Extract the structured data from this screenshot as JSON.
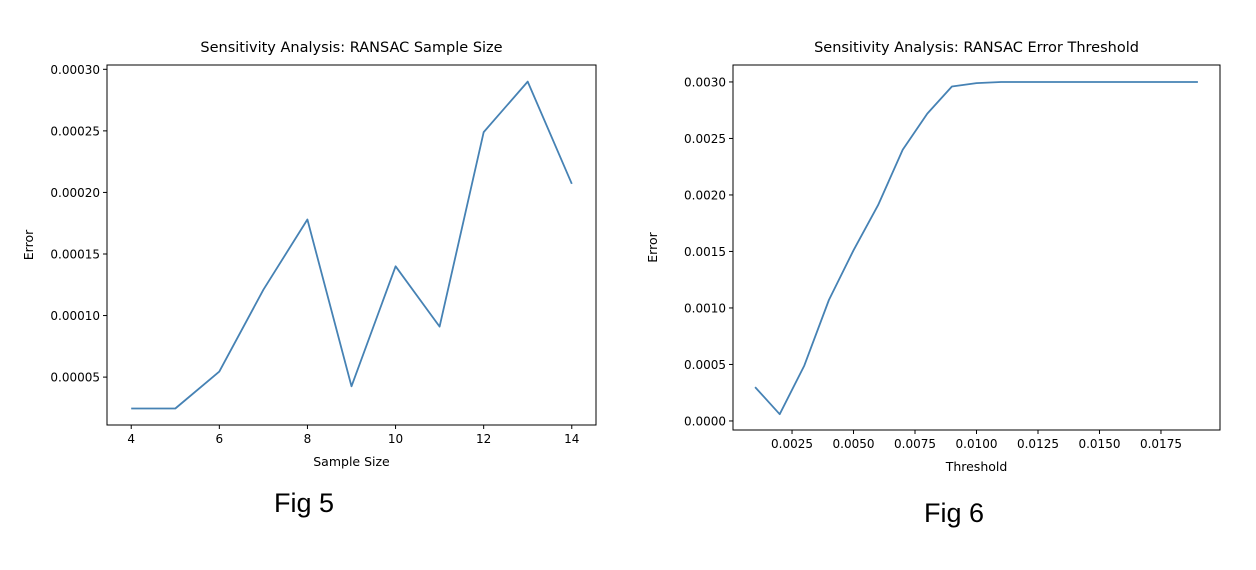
{
  "captions": [
    "Fig 5",
    "Fig 6"
  ],
  "chart_data": [
    {
      "type": "line",
      "title": "Sensitivity Analysis: RANSAC Sample Size",
      "xlabel": "Sample Size",
      "ylabel": "Error",
      "xlim": [
        3.45,
        14.55
      ],
      "ylim": [
        1.11e-05,
        0.0003035
      ],
      "x_ticks": [
        4,
        6,
        8,
        10,
        12,
        14
      ],
      "x_tick_labels": [
        "4",
        "6",
        "8",
        "10",
        "12",
        "14"
      ],
      "y_ticks": [
        5e-05,
        0.0001,
        0.00015,
        0.0002,
        0.00025,
        0.0003
      ],
      "y_tick_labels": [
        "0.00005",
        "0.00010",
        "0.00015",
        "0.00020",
        "0.00025",
        "0.00030"
      ],
      "line_color": "#4682b4",
      "grid": false,
      "series": [
        {
          "x": [
            4,
            5,
            6,
            7,
            8,
            9,
            10,
            11,
            12,
            13,
            14
          ],
          "values": [
            2.45e-05,
            2.45e-05,
            5.45e-05,
            0.000121,
            0.000178,
            4.25e-05,
            0.00014,
            9.1e-05,
            0.000249,
            0.00029,
            0.000207
          ]
        }
      ]
    },
    {
      "type": "line",
      "title": "Sensitivity Analysis: RANSAC Error Threshold",
      "xlabel": "Threshold",
      "ylabel": "Error",
      "xlim": [
        0.0001,
        0.0199
      ],
      "ylim": [
        -8e-05,
        0.00315
      ],
      "x_ticks": [
        0.0025,
        0.005,
        0.0075,
        0.01,
        0.0125,
        0.015,
        0.0175
      ],
      "x_tick_labels": [
        "0.0025",
        "0.0050",
        "0.0075",
        "0.0100",
        "0.0125",
        "0.0150",
        "0.0175"
      ],
      "y_ticks": [
        0,
        0.0005,
        0.001,
        0.0015,
        0.002,
        0.0025,
        0.003
      ],
      "y_tick_labels": [
        "0.0000",
        "0.0005",
        "0.0010",
        "0.0015",
        "0.0020",
        "0.0025",
        "0.0030"
      ],
      "line_color": "#4682b4",
      "grid": false,
      "series": [
        {
          "x": [
            0.001,
            0.002,
            0.003,
            0.004,
            0.005,
            0.006,
            0.007,
            0.008,
            0.009,
            0.01,
            0.011,
            0.012,
            0.013,
            0.014,
            0.015,
            0.016,
            0.017,
            0.018,
            0.019
          ],
          "values": [
            0.0003,
            6e-05,
            0.00049,
            0.00107,
            0.00151,
            0.00191,
            0.0024,
            0.00272,
            0.00296,
            0.00299,
            0.003,
            0.003,
            0.003,
            0.003,
            0.003,
            0.003,
            0.003,
            0.003,
            0.003
          ]
        }
      ]
    }
  ]
}
